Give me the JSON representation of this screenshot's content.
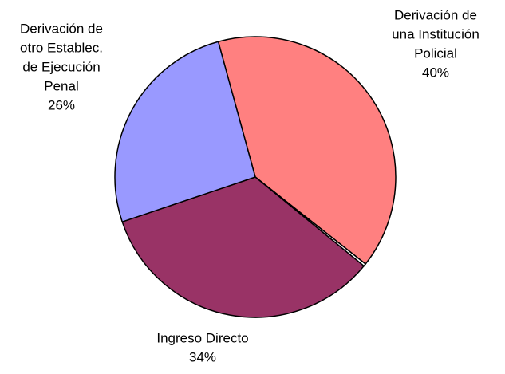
{
  "chart_data": {
    "type": "pie",
    "categories": [
      [
        "Derivación de",
        "una Institución",
        "Policial"
      ],
      null,
      [
        "Ingreso Directo"
      ],
      [
        "Derivación de",
        "otro Establec.",
        "de Ejecución",
        "Penal"
      ]
    ],
    "values": [
      40,
      0.3,
      34,
      26
    ],
    "value_labels": [
      "40%",
      null,
      "34%",
      "26%"
    ],
    "colors": [
      "#ff8080",
      "#ffffff",
      "#993366",
      "#9999ff"
    ]
  }
}
